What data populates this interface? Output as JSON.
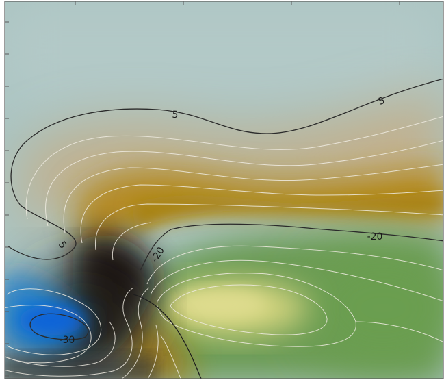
{
  "chart_data": {
    "type": "heatmap",
    "title": "",
    "xlabel": "",
    "ylabel": "",
    "grid": false,
    "legend": "none",
    "colors": {
      "background_pale": "#aac4c2",
      "ochre": "#b78a1c",
      "dark_core": "#0e0c08",
      "green": "#6c9b54",
      "pale_yellow": "#d8d884",
      "blue_min": "#0a6bd8",
      "contour_dark": "#2b2b2b",
      "contour_light": "#f0ece2"
    },
    "contour_labels": [
      {
        "text": "5",
        "style": "dark"
      },
      {
        "text": "5",
        "style": "dark"
      },
      {
        "text": "5",
        "style": "dark"
      },
      {
        "text": "-20",
        "style": "dark"
      },
      {
        "text": "-20",
        "style": "dark"
      },
      {
        "text": "-30",
        "style": "dark"
      }
    ]
  }
}
